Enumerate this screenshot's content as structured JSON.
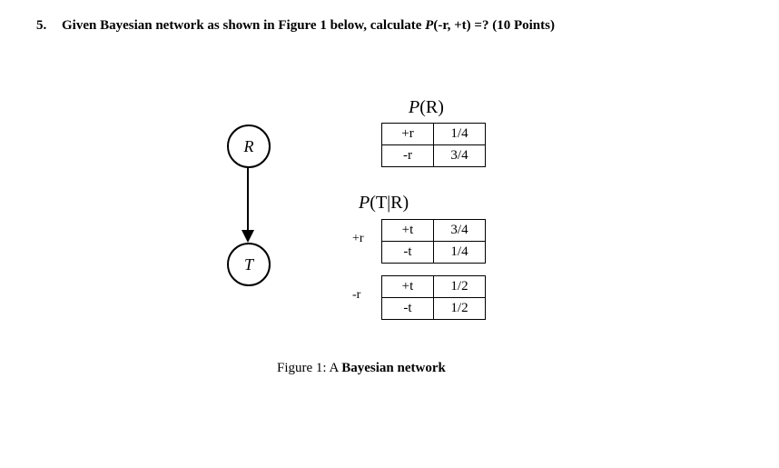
{
  "question": {
    "number": "5.",
    "prefix": "Given Bayesian network as shown in Figure 1 below, calculate ",
    "formula_p": "P",
    "formula_args": "(-r, +t) =? ",
    "points": "(10 Points)"
  },
  "nodes": {
    "r": "R",
    "t": "T"
  },
  "table_pr": {
    "title_p": "P",
    "title_arg": "(R)",
    "rows": [
      {
        "k": "+r",
        "v": "1/4"
      },
      {
        "k": "-r",
        "v": "3/4"
      }
    ]
  },
  "table_ptr": {
    "title_p": "P",
    "title_arg": "(T|R)",
    "group1_label": "+r",
    "group1": [
      {
        "k": "+t",
        "v": "3/4"
      },
      {
        "k": "-t",
        "v": "1/4"
      }
    ],
    "group2_label": "-r",
    "group2": [
      {
        "k": "+t",
        "v": "1/2"
      },
      {
        "k": "-t",
        "v": "1/2"
      }
    ]
  },
  "caption": {
    "prefix": "Figure 1: A ",
    "bold": "Bayesian network"
  },
  "style": {
    "border_color": "#000000",
    "background": "#ffffff",
    "text_color": "#000000"
  }
}
